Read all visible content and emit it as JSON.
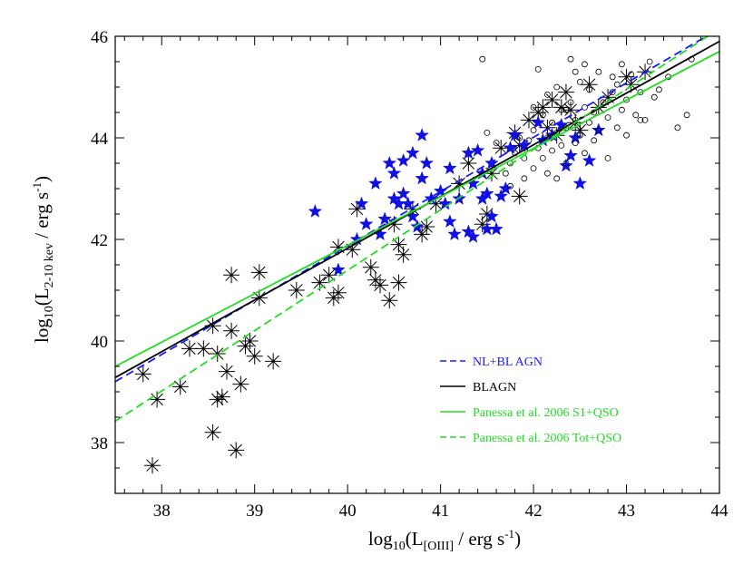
{
  "chart_data": {
    "type": "scatter",
    "x_axis": {
      "range": [
        37.5,
        44.0
      ],
      "ticks": [
        "38",
        "39",
        "40",
        "41",
        "42",
        "43",
        "44"
      ],
      "label_main": "log",
      "label_sub": "10",
      "label_rest": "(L",
      "label_sub2": "[OIII]",
      "label_unit": " / erg s",
      "label_sup": "-1",
      "label_end": ")"
    },
    "y_axis": {
      "range": [
        37.0,
        46.0
      ],
      "ticks": [
        "38",
        "40",
        "42",
        "44",
        "46"
      ],
      "label_main": "log",
      "label_sub": "10",
      "label_rest": "(L",
      "label_sub2": "2-10 kev",
      "label_unit": " / erg s",
      "label_sup": "-1",
      "label_end": ")"
    },
    "grid": false,
    "legend_position": "lower-right",
    "legend": [
      {
        "label": "NL+BL AGN",
        "color": "#1a1aff",
        "dash": "dashed",
        "text_color": "#1a1aff"
      },
      {
        "label": "BLAGN",
        "color": "#000000",
        "dash": "solid",
        "text_color": "#000000"
      },
      {
        "label": "Panessa et al. 2006 S1+QSO",
        "color": "#22dd22",
        "dash": "solid",
        "text_color": "#22dd22"
      },
      {
        "label": "Panessa et al. 2006 Tot+QSO",
        "color": "#22dd22",
        "dash": "dashed",
        "text_color": "#22dd22"
      }
    ],
    "fit_lines": [
      {
        "name": "NL+BL AGN",
        "color": "#1a1aff",
        "dash": "dashed",
        "x": [
          37.5,
          44.0
        ],
        "y": [
          39.2,
          46.15
        ]
      },
      {
        "name": "BLAGN",
        "color": "#000000",
        "dash": "solid",
        "x": [
          37.5,
          44.0
        ],
        "y": [
          39.28,
          45.9
        ]
      },
      {
        "name": "Panessa et al. 2006 S1+QSO",
        "color": "#22dd22",
        "dash": "solid",
        "x": [
          37.5,
          44.0
        ],
        "y": [
          39.5,
          45.7
        ]
      },
      {
        "name": "Panessa et al. 2006 Tot+QSO",
        "color": "#22dd22",
        "dash": "dashed",
        "x": [
          37.5,
          44.0
        ],
        "y": [
          38.42,
          46.15
        ]
      }
    ],
    "series": [
      {
        "marker": "asterisk",
        "color": "#000000",
        "points": [
          [
            37.9,
            37.55
          ],
          [
            37.8,
            39.35
          ],
          [
            37.95,
            38.85
          ],
          [
            38.2,
            39.1
          ],
          [
            38.3,
            39.85
          ],
          [
            38.45,
            39.85
          ],
          [
            38.55,
            40.3
          ],
          [
            38.6,
            39.75
          ],
          [
            38.55,
            38.2
          ],
          [
            38.6,
            38.85
          ],
          [
            38.65,
            38.9
          ],
          [
            38.7,
            39.4
          ],
          [
            38.75,
            40.2
          ],
          [
            38.8,
            37.85
          ],
          [
            38.9,
            39.9
          ],
          [
            38.95,
            40.0
          ],
          [
            38.75,
            41.3
          ],
          [
            39.0,
            39.7
          ],
          [
            39.05,
            41.35
          ],
          [
            38.85,
            39.15
          ],
          [
            39.05,
            40.85
          ],
          [
            39.2,
            39.6
          ],
          [
            39.45,
            41.0
          ],
          [
            39.7,
            41.15
          ],
          [
            39.8,
            41.3
          ],
          [
            39.85,
            40.85
          ],
          [
            39.9,
            40.95
          ],
          [
            39.9,
            41.85
          ],
          [
            40.05,
            41.8
          ],
          [
            40.1,
            42.6
          ],
          [
            40.25,
            41.45
          ],
          [
            40.3,
            41.2
          ],
          [
            40.35,
            41.1
          ],
          [
            40.45,
            40.8
          ],
          [
            40.5,
            42.3
          ],
          [
            40.55,
            41.15
          ],
          [
            40.6,
            41.7
          ],
          [
            40.55,
            41.9
          ],
          [
            40.7,
            42.6
          ],
          [
            40.85,
            42.25
          ],
          [
            40.8,
            42.1
          ],
          [
            40.95,
            42.7
          ],
          [
            41.2,
            43.1
          ],
          [
            41.3,
            43.5
          ],
          [
            41.5,
            42.5
          ],
          [
            41.45,
            42.3
          ],
          [
            41.85,
            42.85
          ],
          [
            41.55,
            43.3
          ],
          [
            41.65,
            43.8
          ],
          [
            41.8,
            44.1
          ],
          [
            41.85,
            43.85
          ],
          [
            41.95,
            44.35
          ],
          [
            42.05,
            44.5
          ],
          [
            42.1,
            44.6
          ],
          [
            42.15,
            44.2
          ],
          [
            42.2,
            44.75
          ],
          [
            42.25,
            44.05
          ],
          [
            42.3,
            44.6
          ],
          [
            42.35,
            44.9
          ],
          [
            42.4,
            44.55
          ],
          [
            42.45,
            44.3
          ],
          [
            42.5,
            44.15
          ],
          [
            42.6,
            45.05
          ],
          [
            42.7,
            44.6
          ],
          [
            42.8,
            44.8
          ],
          [
            43.0,
            45.2
          ],
          [
            43.05,
            45.05
          ],
          [
            43.2,
            45.3
          ]
        ]
      },
      {
        "marker": "star",
        "color": "#1010e0",
        "points": [
          [
            39.65,
            42.55
          ],
          [
            39.9,
            41.4
          ],
          [
            40.1,
            42.0
          ],
          [
            40.15,
            42.7
          ],
          [
            40.2,
            42.3
          ],
          [
            40.3,
            43.1
          ],
          [
            40.35,
            42.1
          ],
          [
            40.4,
            42.4
          ],
          [
            40.45,
            43.5
          ],
          [
            40.5,
            42.8
          ],
          [
            40.55,
            42.7
          ],
          [
            40.5,
            43.3
          ],
          [
            40.6,
            42.9
          ],
          [
            40.6,
            43.55
          ],
          [
            40.65,
            42.7
          ],
          [
            40.7,
            42.45
          ],
          [
            40.75,
            42.25
          ],
          [
            40.7,
            43.7
          ],
          [
            40.8,
            44.05
          ],
          [
            40.8,
            43.2
          ],
          [
            40.85,
            43.5
          ],
          [
            40.9,
            42.8
          ],
          [
            41.0,
            42.95
          ],
          [
            41.05,
            42.7
          ],
          [
            41.1,
            42.35
          ],
          [
            41.15,
            42.1
          ],
          [
            41.1,
            43.4
          ],
          [
            41.2,
            42.8
          ],
          [
            41.3,
            42.15
          ],
          [
            41.35,
            42.05
          ],
          [
            41.3,
            43.7
          ],
          [
            41.35,
            43.1
          ],
          [
            41.4,
            43.75
          ],
          [
            41.45,
            43.3
          ],
          [
            41.45,
            42.8
          ],
          [
            41.5,
            42.9
          ],
          [
            41.55,
            42.45
          ],
          [
            41.55,
            43.5
          ],
          [
            41.6,
            42.2
          ],
          [
            41.65,
            42.85
          ],
          [
            41.7,
            43.0
          ],
          [
            41.75,
            43.8
          ],
          [
            41.8,
            44.05
          ],
          [
            41.9,
            43.85
          ],
          [
            42.05,
            44.3
          ],
          [
            42.1,
            43.95
          ],
          [
            42.2,
            44.05
          ],
          [
            42.3,
            44.25
          ],
          [
            42.35,
            43.45
          ],
          [
            42.4,
            43.65
          ],
          [
            42.45,
            44.0
          ],
          [
            42.5,
            43.1
          ],
          [
            42.6,
            43.55
          ],
          [
            42.7,
            44.15
          ],
          [
            41.5,
            42.2
          ]
        ]
      },
      {
        "marker": "circle",
        "color": "#000000",
        "points": [
          [
            41.45,
            45.55
          ],
          [
            41.5,
            44.1
          ],
          [
            41.6,
            43.9
          ],
          [
            41.7,
            43.3
          ],
          [
            41.75,
            43.5
          ],
          [
            41.8,
            43.7
          ],
          [
            41.85,
            44.0
          ],
          [
            41.9,
            43.6
          ],
          [
            41.95,
            43.95
          ],
          [
            42.0,
            44.15
          ],
          [
            42.0,
            43.4
          ],
          [
            42.05,
            43.8
          ],
          [
            42.1,
            44.45
          ],
          [
            42.1,
            43.6
          ],
          [
            42.15,
            43.3
          ],
          [
            42.15,
            44.85
          ],
          [
            42.2,
            44.3
          ],
          [
            42.2,
            43.75
          ],
          [
            42.25,
            44.1
          ],
          [
            42.25,
            45.0
          ],
          [
            42.3,
            43.85
          ],
          [
            42.3,
            44.55
          ],
          [
            42.35,
            44.2
          ],
          [
            42.35,
            43.5
          ],
          [
            42.4,
            44.7
          ],
          [
            42.4,
            45.55
          ],
          [
            42.45,
            44.35
          ],
          [
            42.45,
            43.9
          ],
          [
            42.5,
            44.05
          ],
          [
            42.5,
            45.1
          ],
          [
            42.55,
            44.6
          ],
          [
            42.55,
            43.7
          ],
          [
            42.6,
            44.3
          ],
          [
            42.6,
            44.95
          ],
          [
            42.65,
            44.5
          ],
          [
            42.65,
            43.95
          ],
          [
            42.7,
            44.15
          ],
          [
            42.7,
            45.3
          ],
          [
            42.75,
            44.7
          ],
          [
            42.8,
            43.6
          ],
          [
            42.8,
            44.4
          ],
          [
            42.85,
            44.9
          ],
          [
            42.9,
            44.2
          ],
          [
            42.9,
            45.05
          ],
          [
            42.95,
            44.55
          ],
          [
            43.0,
            44.75
          ],
          [
            43.0,
            44.05
          ],
          [
            43.05,
            45.25
          ],
          [
            43.1,
            44.45
          ],
          [
            43.15,
            44.9
          ],
          [
            43.2,
            44.35
          ],
          [
            43.25,
            45.5
          ],
          [
            43.3,
            44.8
          ],
          [
            43.45,
            45.2
          ],
          [
            43.55,
            44.2
          ],
          [
            43.65,
            44.45
          ],
          [
            43.7,
            45.55
          ],
          [
            42.05,
            45.35
          ],
          [
            42.15,
            44.0
          ],
          [
            41.9,
            43.2
          ],
          [
            41.75,
            43.05
          ],
          [
            42.25,
            43.2
          ],
          [
            42.35,
            44.55
          ],
          [
            42.45,
            45.3
          ],
          [
            42.55,
            45.45
          ],
          [
            42.85,
            45.2
          ],
          [
            42.95,
            45.45
          ],
          [
            43.15,
            44.35
          ],
          [
            43.35,
            44.95
          ],
          [
            42.0,
            44.6
          ]
        ]
      }
    ]
  }
}
